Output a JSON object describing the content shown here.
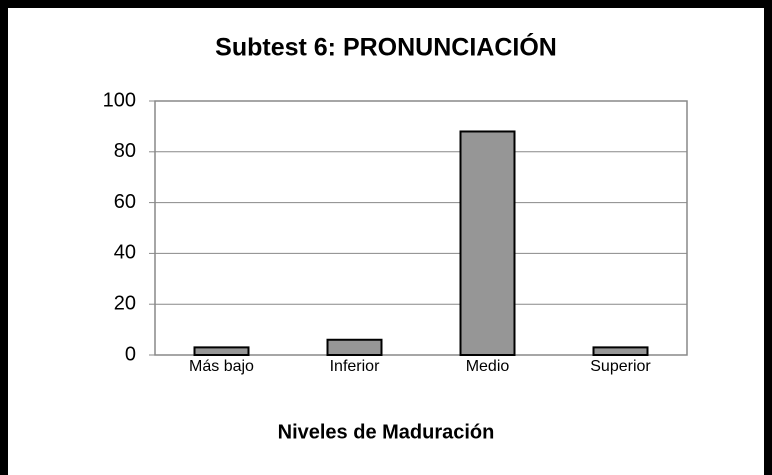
{
  "chart_data": {
    "type": "bar",
    "title": "Subtest 6: PRONUNCIACIÓN",
    "x_label": "Niveles de Maduración",
    "categories": [
      "Más bajo",
      "Inferior",
      "Medio",
      "Superior"
    ],
    "values": [
      3,
      6,
      88,
      3
    ],
    "color": "#969696",
    "ylim": [
      0,
      100
    ],
    "yticks": [
      0,
      20,
      40,
      60,
      80,
      100
    ],
    "grid": true
  }
}
